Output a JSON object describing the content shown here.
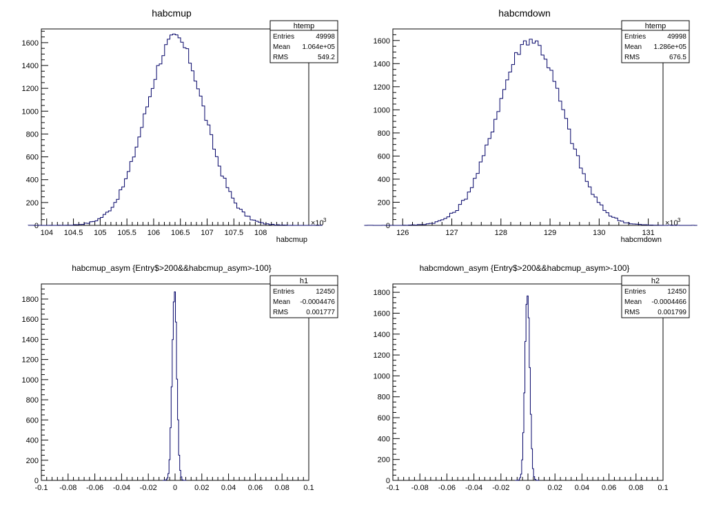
{
  "chart_data": [
    {
      "type": "histogram",
      "title": "habcmup",
      "xlabel": "habcmup",
      "x_multiplier": "×10",
      "x_multiplier_exp": "3",
      "xlim": [
        103.9,
        108.9
      ],
      "ylim": [
        0,
        1720
      ],
      "xticks": [
        104,
        104.5,
        105,
        105.5,
        106,
        106.5,
        107,
        107.5,
        108
      ],
      "yticks": [
        0,
        200,
        400,
        600,
        800,
        1000,
        1200,
        1400,
        1600
      ],
      "mean": 106.4,
      "rms": 0.5492,
      "peak": 1640,
      "bin_width": 0.05,
      "stats": {
        "name": "htemp",
        "rows": [
          {
            "label": "Entries",
            "value": "49998"
          },
          {
            "label": "Mean",
            "value": "1.064e+05"
          },
          {
            "label": "RMS",
            "value": "549.2"
          }
        ]
      },
      "grid": false,
      "legend": "top-right"
    },
    {
      "type": "histogram",
      "title": "habcmdown",
      "xlabel": "habcmdown",
      "x_multiplier": "×10",
      "x_multiplier_exp": "3",
      "xlim": [
        125.8,
        131.3
      ],
      "ylim": [
        0,
        1700
      ],
      "xticks": [
        126,
        127,
        128,
        129,
        130,
        131
      ],
      "yticks": [
        0,
        200,
        400,
        600,
        800,
        1000,
        1200,
        1400,
        1600
      ],
      "mean": 128.6,
      "rms": 0.6765,
      "peak": 1610,
      "bin_width": 0.06,
      "stats": {
        "name": "htemp",
        "rows": [
          {
            "label": "Entries",
            "value": "49998"
          },
          {
            "label": "Mean",
            "value": "1.286e+05"
          },
          {
            "label": "RMS",
            "value": "676.5"
          }
        ]
      },
      "grid": false,
      "legend": "top-right"
    },
    {
      "type": "histogram",
      "title": "habcmup_asym {Entry$>200&&habcmup_asym>-100}",
      "xlabel": "",
      "xlim": [
        -0.1,
        0.1
      ],
      "ylim": [
        0,
        1950
      ],
      "xticks": [
        -0.1,
        -0.08,
        -0.06,
        -0.04,
        -0.02,
        0,
        0.02,
        0.04,
        0.06,
        0.08,
        0.1
      ],
      "yticks": [
        0,
        200,
        400,
        600,
        800,
        1000,
        1200,
        1400,
        1600,
        1800
      ],
      "mean": -0.0004476,
      "rms": 0.001777,
      "peak": 1860,
      "bin_width": 0.0008,
      "stats": {
        "name": "h1",
        "rows": [
          {
            "label": "Entries",
            "value": "12450"
          },
          {
            "label": "Mean",
            "value": "-0.0004476"
          },
          {
            "label": "RMS",
            "value": "0.001777"
          }
        ]
      },
      "grid": false,
      "legend": "top-right"
    },
    {
      "type": "histogram",
      "title": "habcmdown_asym {Entry$>200&&habcmup_asym>-100}",
      "xlabel": "",
      "xlim": [
        -0.1,
        0.1
      ],
      "ylim": [
        0,
        1880
      ],
      "xticks": [
        -0.1,
        -0.08,
        -0.06,
        -0.04,
        -0.02,
        0,
        0.02,
        0.04,
        0.06,
        0.08,
        0.1
      ],
      "yticks": [
        0,
        200,
        400,
        600,
        800,
        1000,
        1200,
        1400,
        1600,
        1800
      ],
      "mean": -0.0004466,
      "rms": 0.001799,
      "peak": 1790,
      "bin_width": 0.0008,
      "stats": {
        "name": "h2",
        "rows": [
          {
            "label": "Entries",
            "value": "12450"
          },
          {
            "label": "Mean",
            "value": "-0.0004466"
          },
          {
            "label": "RMS",
            "value": "0.001799"
          }
        ]
      },
      "grid": false,
      "legend": "top-right"
    }
  ]
}
